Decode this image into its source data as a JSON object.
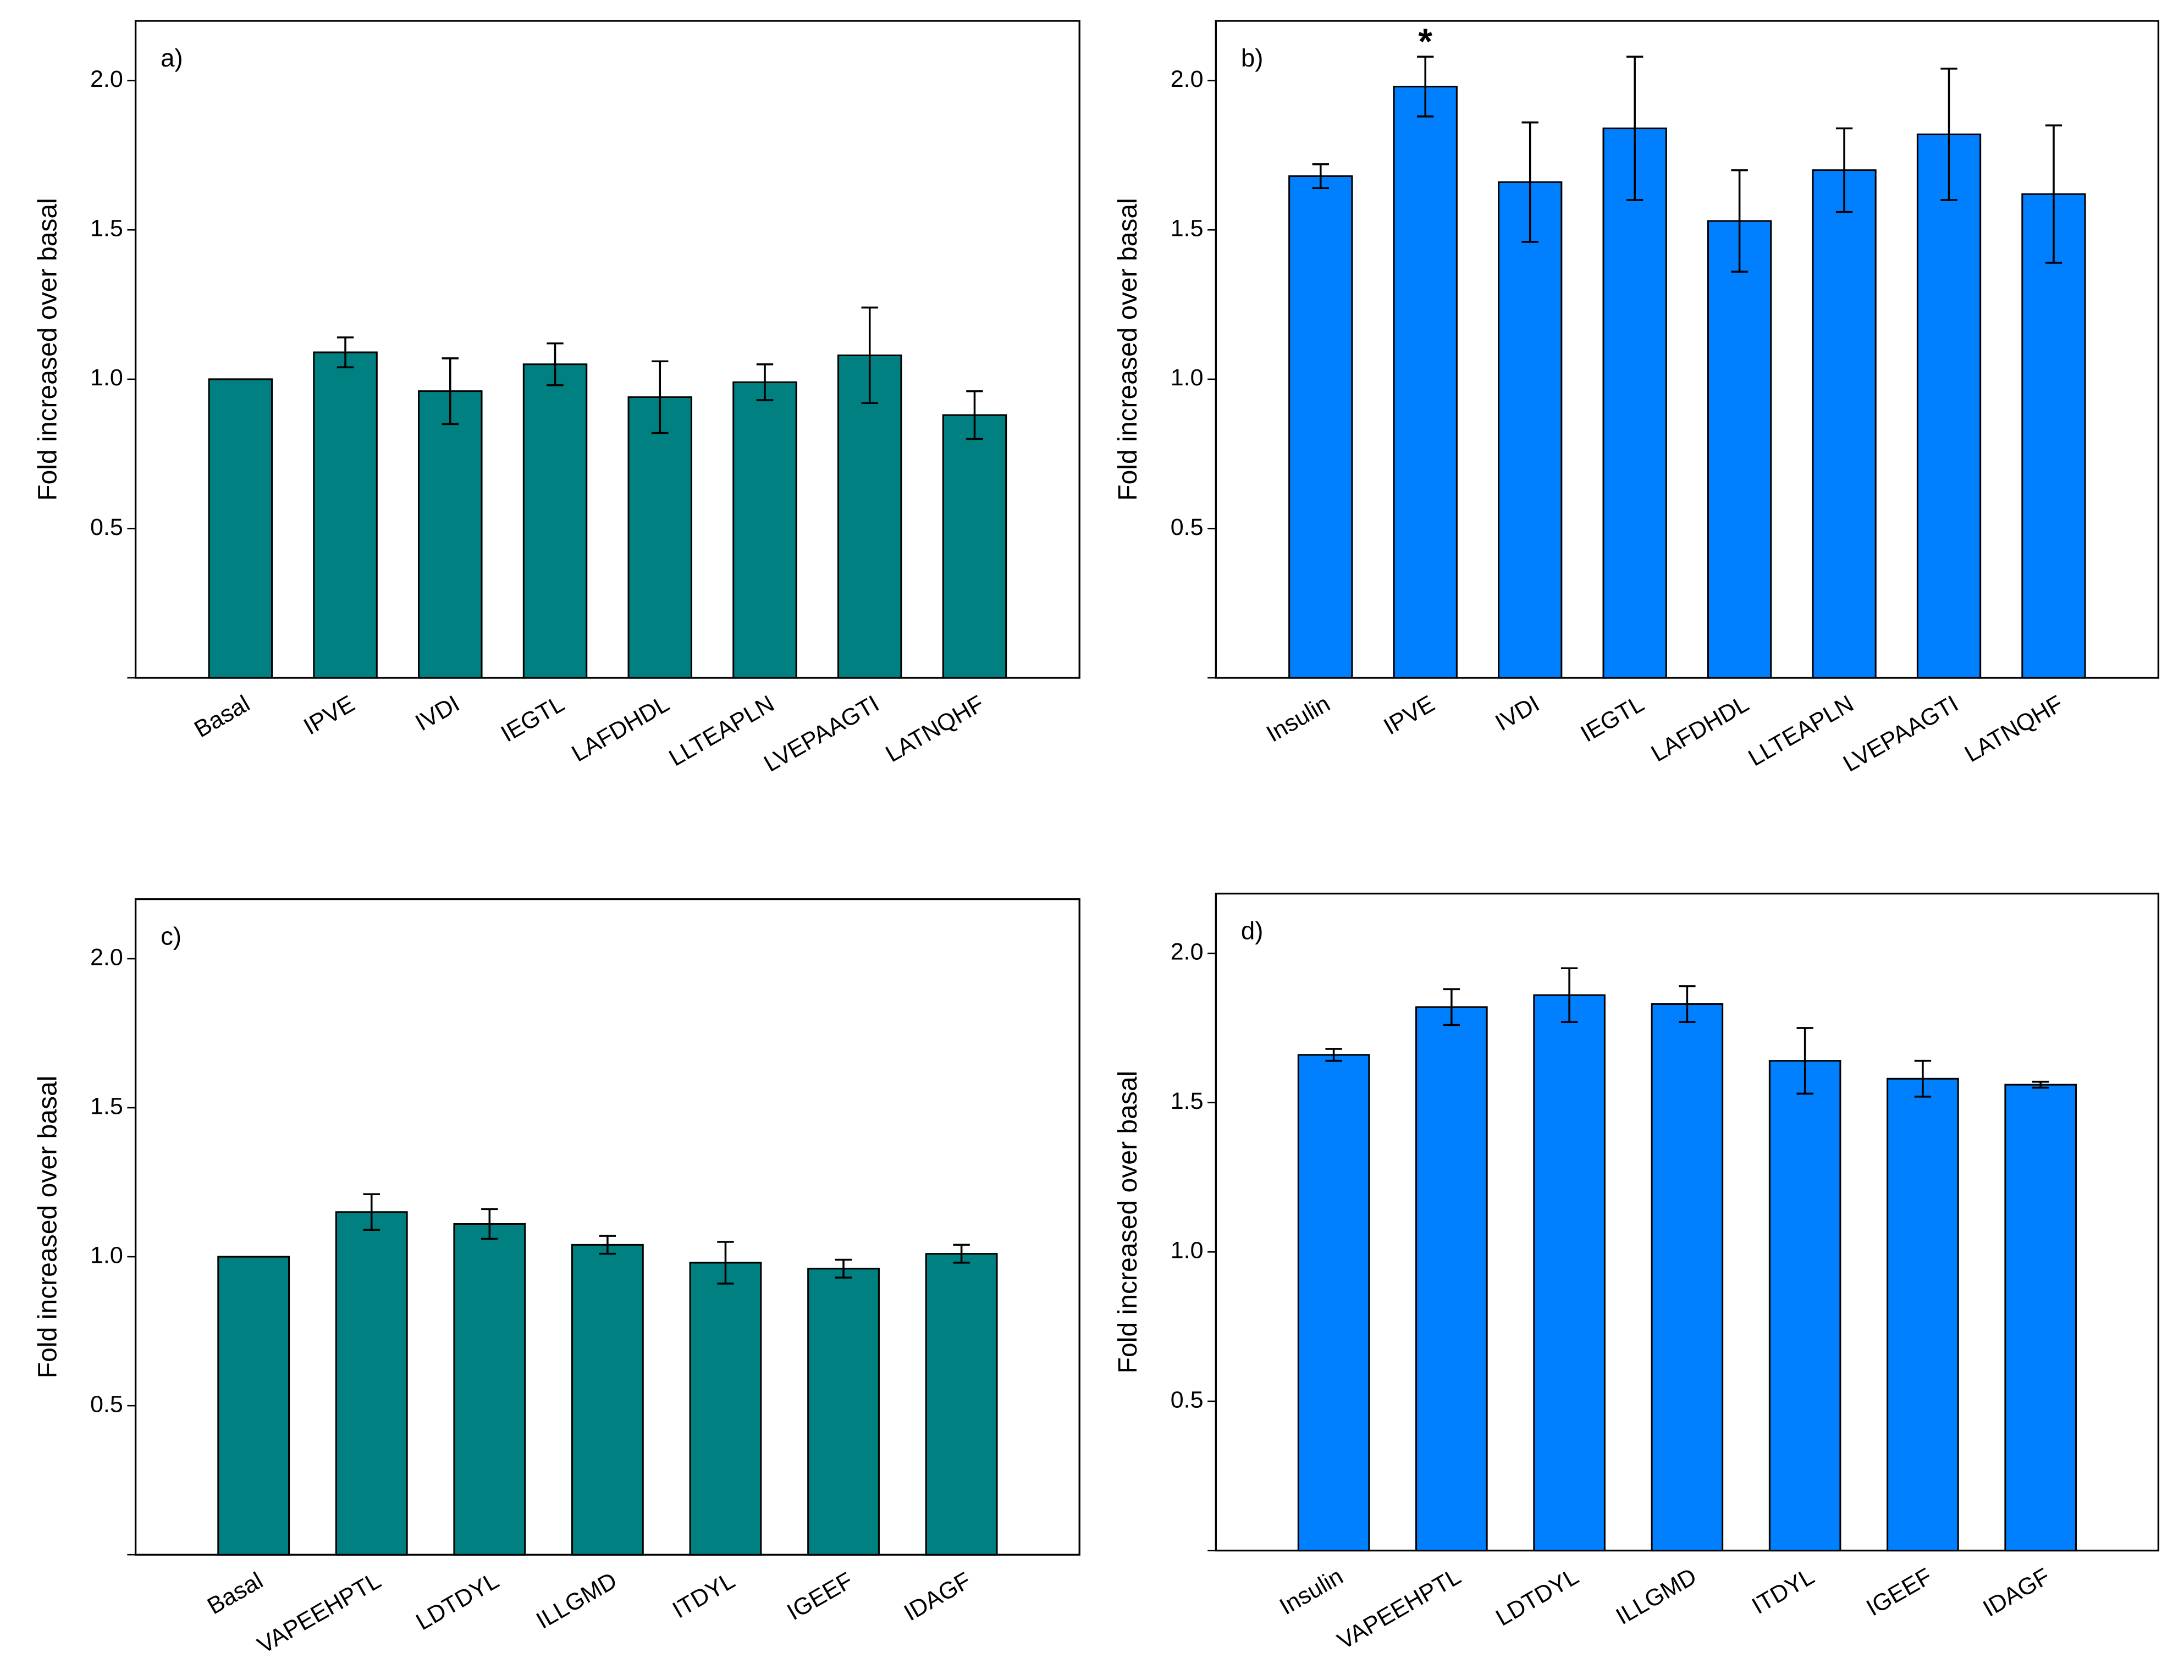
{
  "chart_data": [
    {
      "type": "bar",
      "label": "a)",
      "ylabel": "Fold increased over basal",
      "color": "#008080",
      "categories": [
        "Basal",
        "IPVE",
        "IVDI",
        "IEGTL",
        "LAFDHDL",
        "LLTEAPLN",
        "LVEPAAGTI",
        "LATNQHF"
      ],
      "values": [
        1.0,
        1.09,
        0.96,
        1.05,
        0.94,
        0.99,
        1.08,
        0.88
      ],
      "errors": [
        null,
        0.05,
        0.11,
        0.07,
        0.12,
        0.06,
        0.16,
        0.08
      ],
      "ylim": [
        0,
        2.2
      ],
      "yticks": [
        0.5,
        {
          "value": 1,
          "label": "1.0"
        },
        1.5,
        {
          "value": 2,
          "label": "2.0"
        }
      ]
    },
    {
      "type": "bar",
      "label": "b)",
      "ylabel": "Fold increased over basal",
      "color": "#0080ff",
      "categories": [
        "Insulin",
        "IPVE",
        "IVDI",
        "IEGTL",
        "LAFDHDL",
        "LLTEAPLN",
        "LVEPAAGTI",
        "LATNQHF"
      ],
      "values": [
        1.68,
        1.98,
        1.66,
        1.84,
        1.53,
        1.7,
        1.82,
        1.62
      ],
      "errors": [
        0.04,
        0.1,
        0.2,
        0.24,
        0.17,
        0.14,
        0.22,
        0.23
      ],
      "annotations": [
        {
          "text": "*",
          "category": "IPVE"
        }
      ],
      "ylim": [
        0,
        2.2
      ],
      "yticks": [
        0.5,
        {
          "value": 1,
          "label": "1.0"
        },
        1.5,
        {
          "value": 2,
          "label": "2.0"
        }
      ]
    },
    {
      "type": "bar",
      "label": "c)",
      "ylabel": "Fold increased over basal",
      "color": "#008080",
      "categories": [
        "Basal",
        "VAPEEHPTL",
        "LDTDYL",
        "ILLGMD",
        "ITDYL",
        "IGEEF",
        "IDAGF"
      ],
      "values": [
        1.0,
        1.15,
        1.11,
        1.04,
        0.98,
        0.96,
        1.01
      ],
      "errors": [
        null,
        0.06,
        0.05,
        0.03,
        0.07,
        0.03,
        0.03
      ],
      "ylim": [
        0,
        2.2
      ],
      "yticks": [
        0.5,
        {
          "value": 1,
          "label": "1.0"
        },
        1.5,
        {
          "value": 2,
          "label": "2.0"
        }
      ]
    },
    {
      "type": "bar",
      "label": "d)",
      "ylabel": "Fold increased over basal",
      "color": "#0080ff",
      "categories": [
        "Insulin",
        "VAPEEHPTL",
        "LDTDYL",
        "ILLGMD",
        "ITDYL",
        "IGEEF",
        "IDAGF"
      ],
      "values": [
        1.66,
        1.82,
        1.86,
        1.83,
        1.64,
        1.58,
        1.56
      ],
      "errors": [
        0.02,
        0.06,
        0.09,
        0.06,
        0.11,
        0.06,
        0.01
      ],
      "ylim": [
        0,
        2.2
      ],
      "yticks": [
        0.5,
        {
          "value": 1,
          "label": "1.0"
        },
        1.5,
        {
          "value": 2,
          "label": "2.0"
        }
      ]
    }
  ]
}
